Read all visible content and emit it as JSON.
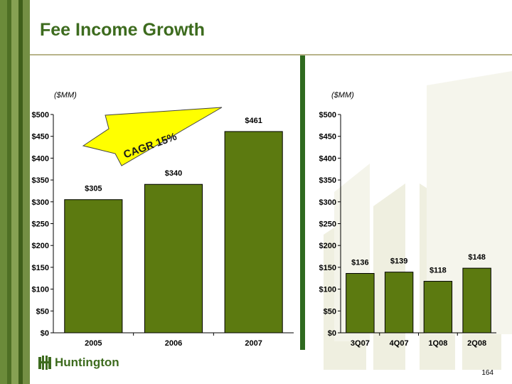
{
  "slide": {
    "title": "Fee Income Growth",
    "page_number": "164",
    "logo_text": "Huntington",
    "left_unit": "($MM)",
    "right_unit": "($MM)",
    "cagr_label": "CAGR 15%"
  },
  "colors": {
    "bar": "#5c7a10",
    "title": "#3d6b1e",
    "divider": "#2f6a1f",
    "arrow": "#ffff00",
    "watermark": "#eeeedd",
    "stripes": [
      "#6b8b3a",
      "#4e6f24",
      "#86a153",
      "#3f5f1a"
    ]
  },
  "chart_data": [
    {
      "type": "bar",
      "categories": [
        "2005",
        "2006",
        "2007"
      ],
      "values": [
        305,
        340,
        461
      ],
      "data_labels": [
        "$305",
        "$340",
        "$461"
      ],
      "ylim": [
        0,
        500
      ],
      "yticks": [
        0,
        50,
        100,
        150,
        200,
        250,
        300,
        350,
        400,
        450,
        500
      ],
      "ytick_labels": [
        "$0",
        "$50",
        "$100",
        "$150",
        "$200",
        "$250",
        "$300",
        "$350",
        "$400",
        "$450",
        "$500"
      ],
      "ylabel": "($MM)",
      "xlabel": "",
      "title": "",
      "grid": false,
      "legend": "none"
    },
    {
      "type": "bar",
      "categories": [
        "3Q07",
        "4Q07",
        "1Q08",
        "2Q08"
      ],
      "values": [
        136,
        139,
        118,
        148
      ],
      "data_labels": [
        "$136",
        "$139",
        "$118",
        "$148"
      ],
      "ylim": [
        0,
        500
      ],
      "yticks": [
        0,
        50,
        100,
        150,
        200,
        250,
        300,
        350,
        400,
        450,
        500
      ],
      "ytick_labels": [
        "$0",
        "$50",
        "$100",
        "$150",
        "$200",
        "$250",
        "$300",
        "$350",
        "$400",
        "$450",
        "$500"
      ],
      "ylabel": "($MM)",
      "xlabel": "",
      "title": "",
      "grid": false,
      "legend": "none"
    }
  ]
}
